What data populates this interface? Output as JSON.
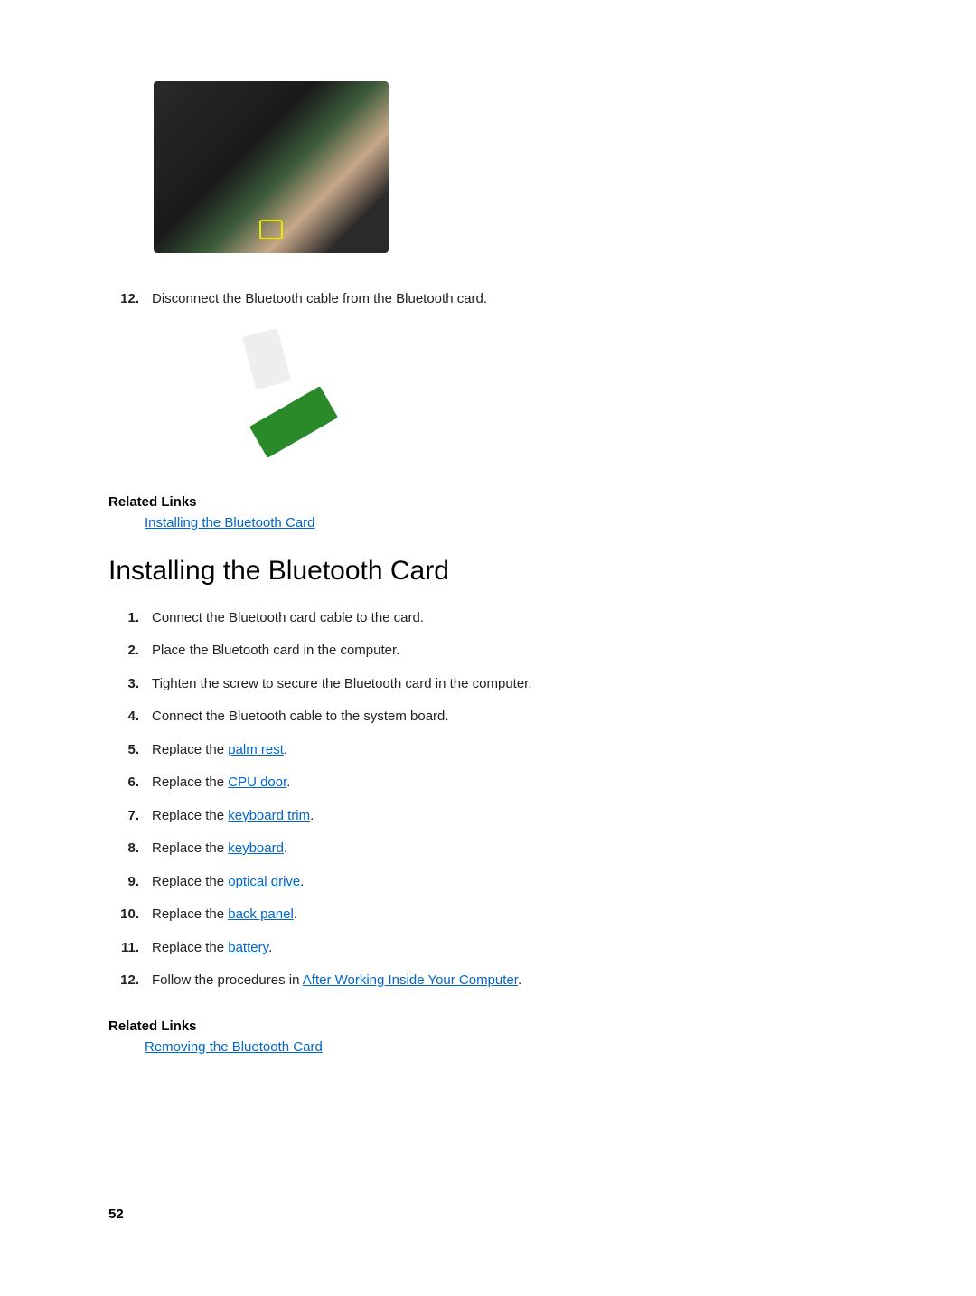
{
  "page_number": "52",
  "top_step": {
    "number": "12.",
    "text": "Disconnect the Bluetooth cable from the Bluetooth card."
  },
  "related_links_1": {
    "heading": "Related Links",
    "link": "Installing the Bluetooth Card"
  },
  "section_heading": "Installing the Bluetooth Card",
  "install_steps": [
    {
      "number": "1.",
      "text": "Connect the Bluetooth card cable to the card."
    },
    {
      "number": "2.",
      "text": "Place the Bluetooth card in the computer."
    },
    {
      "number": "3.",
      "text": "Tighten the screw to secure the Bluetooth card in the computer."
    },
    {
      "number": "4.",
      "text": "Connect the Bluetooth cable to the system board."
    },
    {
      "number": "5.",
      "prefix": "Replace the ",
      "link": "palm rest",
      "suffix": "."
    },
    {
      "number": "6.",
      "prefix": "Replace the ",
      "link": "CPU door",
      "suffix": "."
    },
    {
      "number": "7.",
      "prefix": "Replace the ",
      "link": "keyboard trim",
      "suffix": "."
    },
    {
      "number": "8.",
      "prefix": "Replace the ",
      "link": "keyboard",
      "suffix": "."
    },
    {
      "number": "9.",
      "prefix": "Replace the ",
      "link": "optical drive",
      "suffix": "."
    },
    {
      "number": "10.",
      "prefix": "Replace the ",
      "link": "back panel",
      "suffix": "."
    },
    {
      "number": "11.",
      "prefix": "Replace the ",
      "link": "battery",
      "suffix": "."
    },
    {
      "number": "12.",
      "prefix": "Follow the procedures in ",
      "link": "After Working Inside Your Computer",
      "suffix": "."
    }
  ],
  "related_links_2": {
    "heading": "Related Links",
    "link": "Removing the Bluetooth Card"
  },
  "colors": {
    "link_color": "#0066cc",
    "text_color": "#222222",
    "background": "#ffffff"
  }
}
